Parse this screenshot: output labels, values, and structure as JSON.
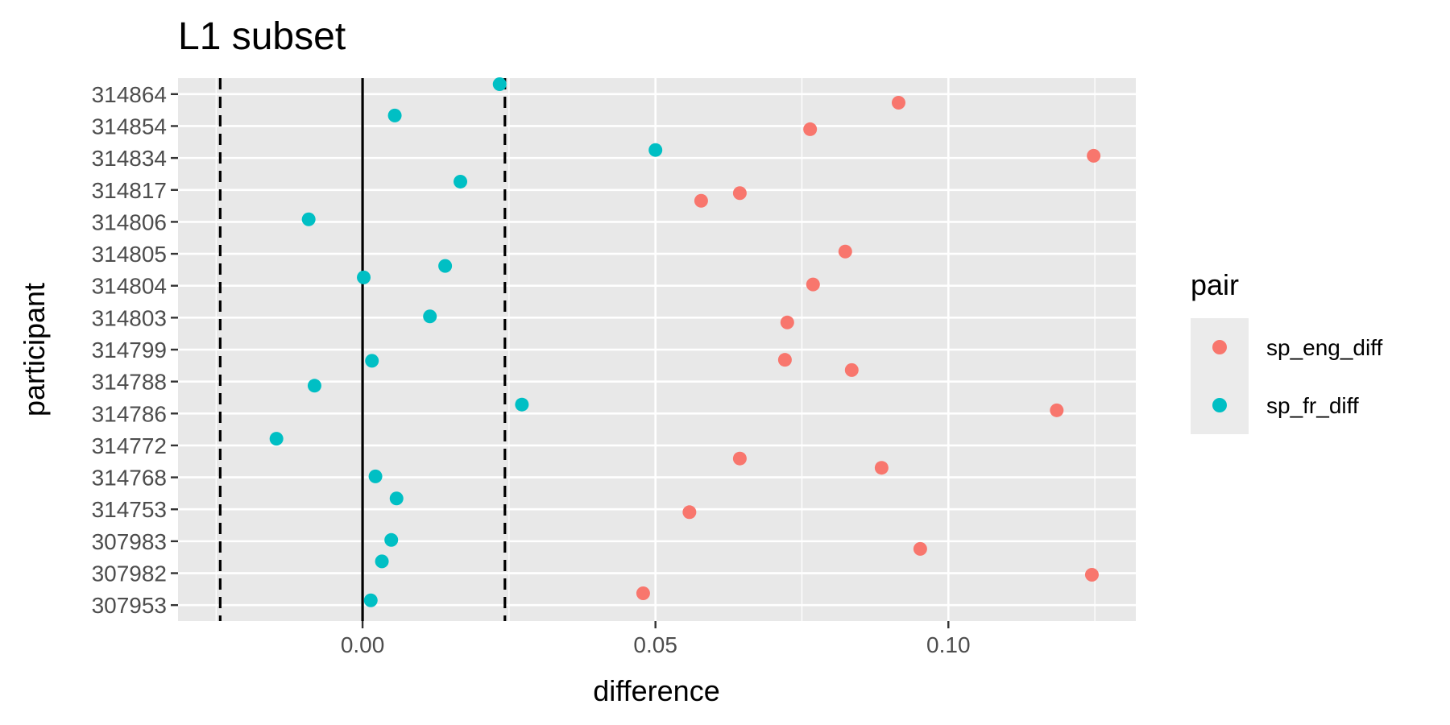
{
  "chart_data": {
    "type": "scatter",
    "title": "L1 subset",
    "xlabel": "difference",
    "ylabel": "participant",
    "xlim": [
      -0.0315,
      0.132
    ],
    "x_ticks": [
      0.0,
      0.05,
      0.1
    ],
    "x_tick_labels": [
      "0.00",
      "0.05",
      "0.10"
    ],
    "categories": [
      "314864",
      "314854",
      "314834",
      "314817",
      "314806",
      "314805",
      "314804",
      "314803",
      "314799",
      "314788",
      "314786",
      "314772",
      "314768",
      "314753",
      "307983",
      "307982",
      "307953"
    ],
    "reference_lines": {
      "solid": [
        0.0
      ],
      "dashed": [
        -0.0243,
        0.0243
      ]
    },
    "grid": true,
    "legend": {
      "title": "pair",
      "position": "right"
    },
    "colors": {
      "panel_background": "#e8e8e8",
      "grid_line": "#ffffff",
      "legend_key_background": "#ebebeb"
    },
    "series": [
      {
        "name": "sp_eng_diff",
        "color": "#f8766d",
        "points": [
          {
            "participant": "314864",
            "x": 0.0915,
            "jitter": -0.27
          },
          {
            "participant": "314854",
            "x": 0.0764,
            "jitter": -0.1
          },
          {
            "participant": "314834",
            "x": 0.1248,
            "jitter": 0.07
          },
          {
            "participant": "314817",
            "x": 0.0644,
            "jitter": -0.1
          },
          {
            "participant": "314806",
            "x": 0.0578,
            "jitter": 0.66
          },
          {
            "participant": "314805",
            "x": 0.0824,
            "jitter": 0.07
          },
          {
            "participant": "314804",
            "x": 0.0769,
            "jitter": 0.04
          },
          {
            "participant": "314803",
            "x": 0.0725,
            "jitter": -0.15
          },
          {
            "participant": "314799",
            "x": 0.0721,
            "jitter": -0.32
          },
          {
            "participant": "314788",
            "x": 0.0835,
            "jitter": 0.36
          },
          {
            "participant": "314786",
            "x": 0.1185,
            "jitter": 0.1
          },
          {
            "participant": "314772",
            "x": 0.0644,
            "jitter": -0.41
          },
          {
            "participant": "314768",
            "x": 0.0886,
            "jitter": 0.3
          },
          {
            "participant": "314753",
            "x": 0.0558,
            "jitter": -0.09
          },
          {
            "participant": "307983",
            "x": 0.0952,
            "jitter": -0.24
          },
          {
            "participant": "307982",
            "x": 0.1245,
            "jitter": -0.05
          },
          {
            "participant": "307953",
            "x": 0.0479,
            "jitter": 0.37
          }
        ]
      },
      {
        "name": "sp_fr_diff",
        "color": "#00bfc4",
        "points": [
          {
            "participant": "314864",
            "x": 0.0234,
            "jitter": 0.31
          },
          {
            "participant": "314854",
            "x": 0.0055,
            "jitter": 0.33
          },
          {
            "participant": "314834",
            "x": 0.05,
            "jitter": 0.25
          },
          {
            "participant": "314817",
            "x": 0.0167,
            "jitter": 0.26
          },
          {
            "participant": "314806",
            "x": -0.0092,
            "jitter": 0.08
          },
          {
            "participant": "314805",
            "x": 0.0141,
            "jitter": -0.38
          },
          {
            "participant": "314804",
            "x": 0.0002,
            "jitter": 0.26
          },
          {
            "participant": "314803",
            "x": 0.0115,
            "jitter": 0.04
          },
          {
            "participant": "314799",
            "x": 0.0016,
            "jitter": -0.35
          },
          {
            "participant": "314788",
            "x": -0.0082,
            "jitter": -0.13
          },
          {
            "participant": "314786",
            "x": 0.0272,
            "jitter": 0.28
          },
          {
            "participant": "314772",
            "x": -0.0147,
            "jitter": 0.21
          },
          {
            "participant": "314768",
            "x": 0.0022,
            "jitter": 0.03
          },
          {
            "participant": "314753",
            "x": 0.0058,
            "jitter": 0.34
          },
          {
            "participant": "307983",
            "x": 0.0049,
            "jitter": 0.04
          },
          {
            "participant": "307982",
            "x": 0.0033,
            "jitter": 0.37
          },
          {
            "participant": "307953",
            "x": 0.0014,
            "jitter": 0.15
          }
        ]
      }
    ]
  }
}
